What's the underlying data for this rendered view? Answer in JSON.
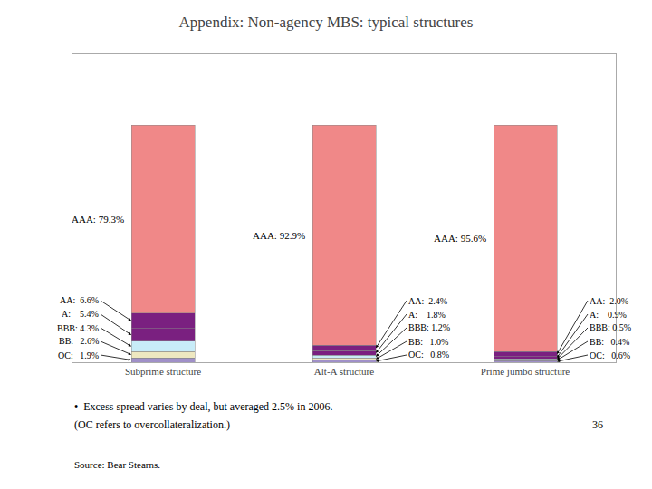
{
  "chart_data": {
    "type": "bar",
    "title": "Appendix: Non-agency MBS: typical structures",
    "categories": [
      "Subprime structure",
      "Alt-A structure",
      "Prime jumbo structure"
    ],
    "stacked": true,
    "data_labels": true,
    "series": [
      {
        "color": "#a090c8",
        "values": [
          1.9,
          0.8,
          0.6
        ],
        "value_labels": [
          "OC:   1.9%",
          "OC:   0.8%",
          "OC:   0.6%"
        ]
      },
      {
        "color": "#eee8c0",
        "values": [
          2.6,
          1.0,
          0.4
        ],
        "value_labels": [
          "BB:   2.6%",
          "BB:   1.0%",
          "BB:   0.4%"
        ]
      },
      {
        "color": "#c8ecf8",
        "values": [
          4.3,
          1.2,
          0.5
        ],
        "value_labels": [
          "BBB: 4.3%",
          "BBB: 1.2%",
          "BBB: 0.5%"
        ]
      },
      {
        "color": "#7a2080",
        "values": [
          5.4,
          1.8,
          0.9
        ],
        "value_labels": [
          "A:    5.4%",
          "A:    1.8%",
          "A:    0.9%"
        ]
      },
      {
        "color": "#7a2080",
        "values": [
          6.6,
          2.4,
          2.0
        ],
        "value_labels": [
          "AA:  6.6%",
          "AA:  2.4%",
          "AA:  2.0%"
        ]
      },
      {
        "color": "#f08888",
        "values": [
          79.3,
          92.9,
          95.6
        ],
        "value_labels": [
          "AAA: 79.3%",
          "AAA: 92.9%",
          "AAA: 95.6%"
        ]
      }
    ],
    "ylim": [
      0,
      130
    ],
    "yticks": [],
    "tick_labels": "x",
    "grid": false,
    "annotations": [
      "•  Excess spread varies by deal, but averaged 2.5% in 2006.",
      "(OC refers to overcollateralization.)",
      "Source: Bear Stearns.",
      "36"
    ]
  }
}
